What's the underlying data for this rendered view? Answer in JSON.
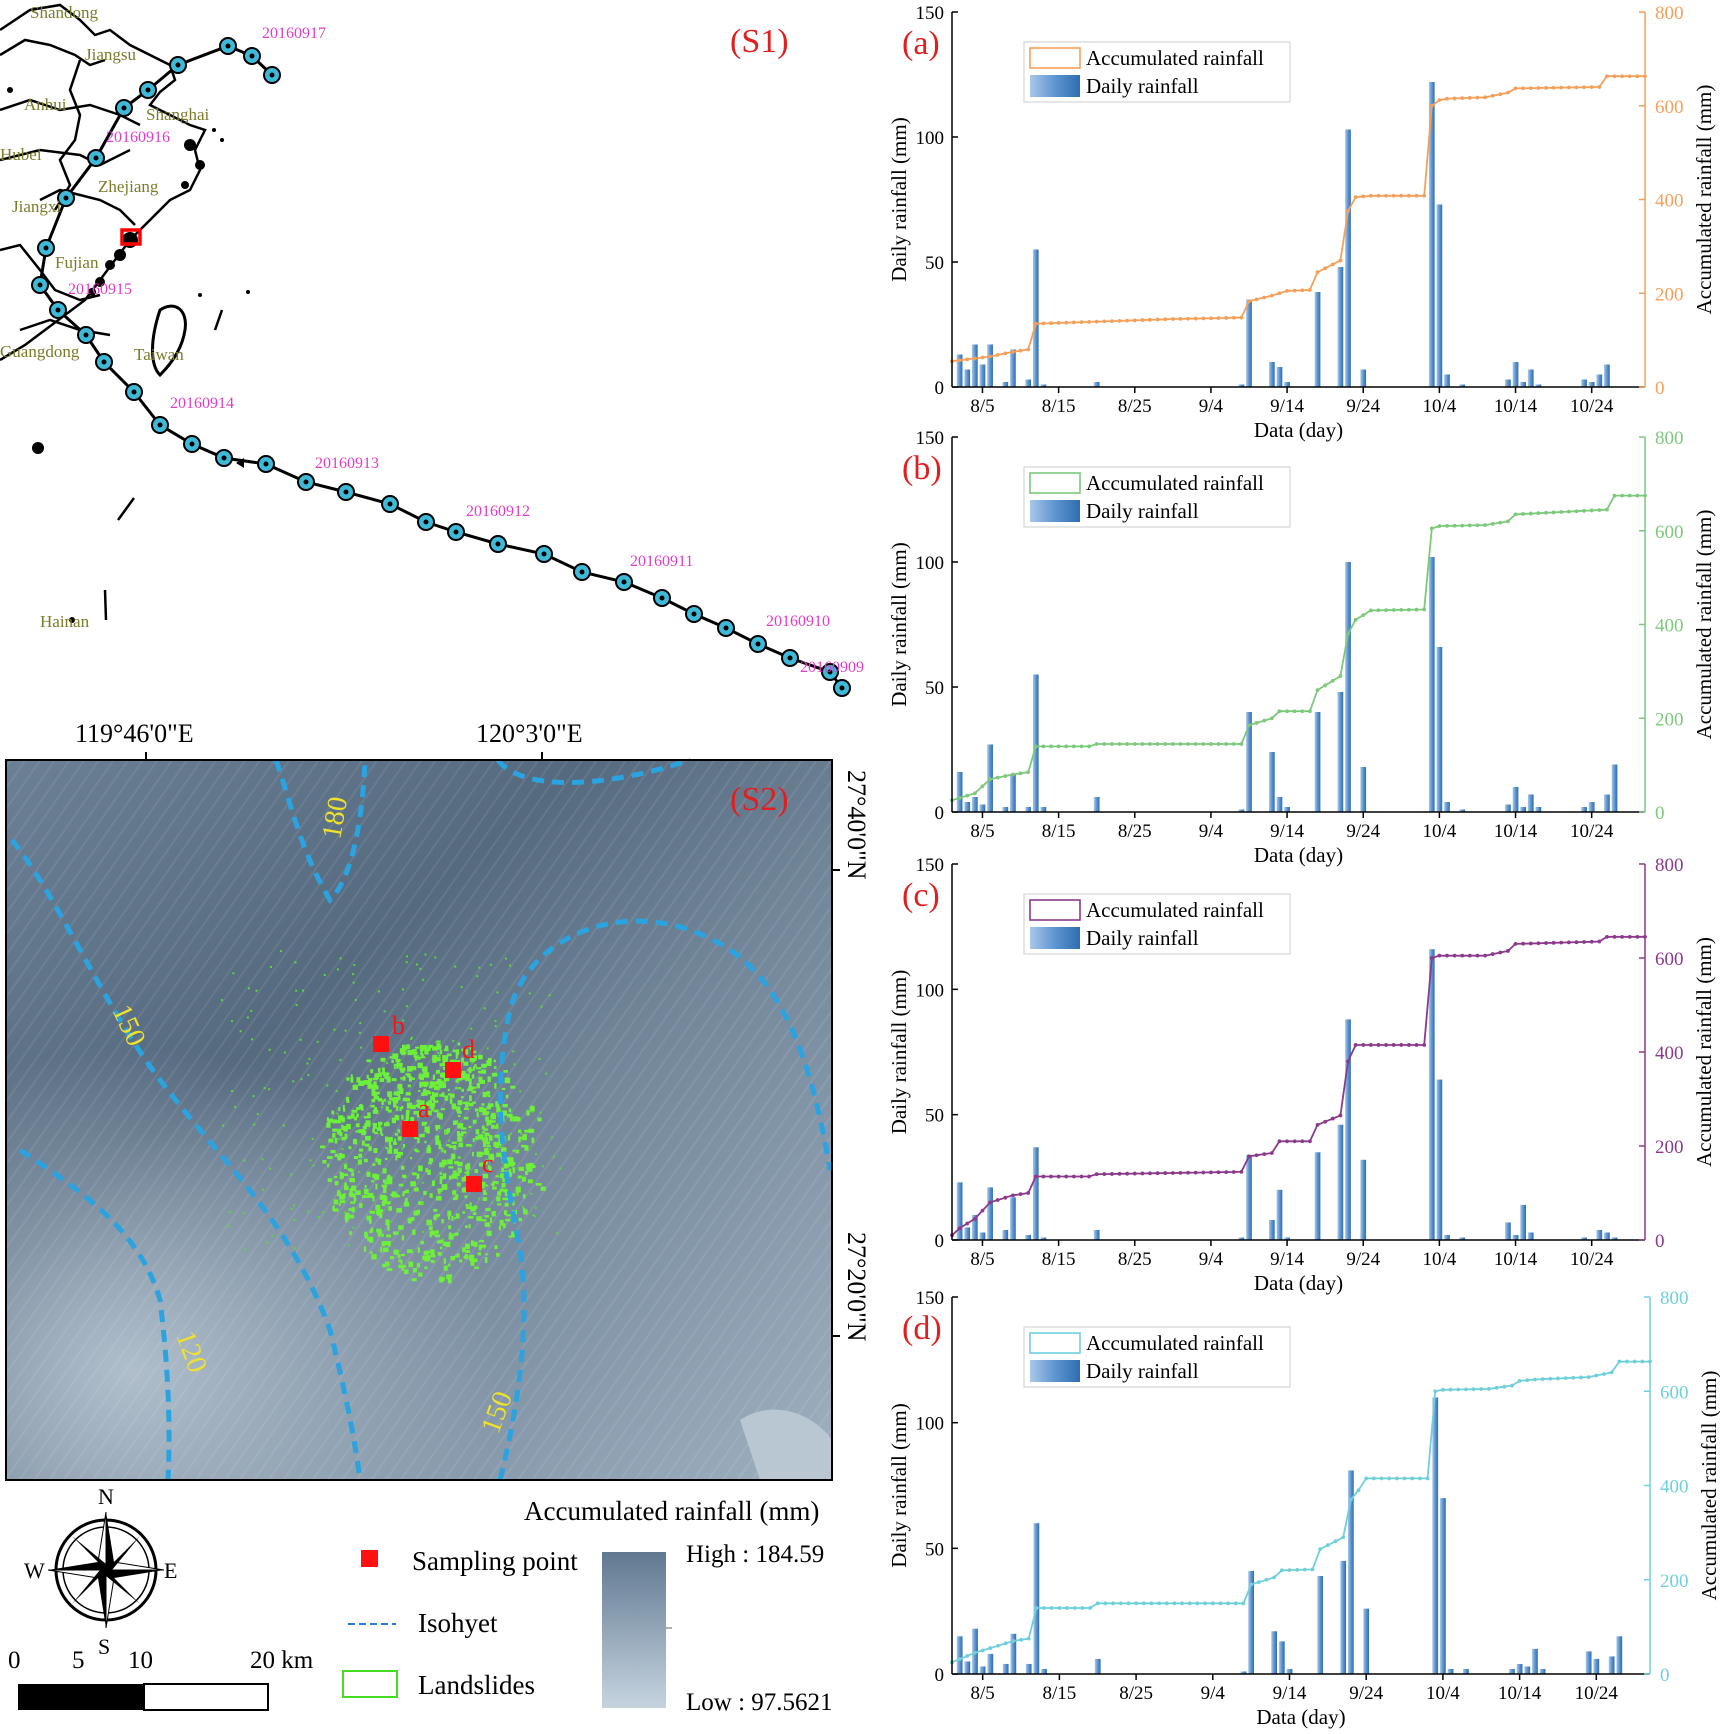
{
  "map_top": {
    "panel_label": "(S1)",
    "provinces": [
      "Shandong",
      "Jiangsu",
      "Anhui",
      "Shanghai",
      "Hubei",
      "Zhejiang",
      "Jiangxi",
      "Fujian",
      "Guangdong",
      "Taiwan",
      "Hainan"
    ],
    "track_dates": [
      "20160917",
      "20160916",
      "20160915",
      "20160914",
      "20160913",
      "20160912",
      "20160911",
      "20160910",
      "20160909"
    ]
  },
  "map_bottom": {
    "panel_label": "(S2)",
    "lon_labels": [
      "119°46'0\"E",
      "120°3'0\"E"
    ],
    "lat_labels": [
      "27°40'0\"N",
      "27°20'0\"N"
    ],
    "isohyet_labels": [
      "180",
      "150",
      "150",
      "120"
    ],
    "points": [
      "a",
      "b",
      "c",
      "d"
    ]
  },
  "legend": {
    "compass": [
      "N",
      "E",
      "S",
      "W"
    ],
    "scale": [
      "0",
      "5",
      "10",
      "20 km"
    ],
    "rain_title": "Accumulated rainfall (mm)",
    "sampling": "Sampling point",
    "isohyet": "Isohyet",
    "landslides": "Landslides",
    "high": "High : 184.59",
    "low": "Low : 97.5621"
  },
  "chart_common": {
    "xlabel": "Data (day)",
    "ylabel_left": "Daily rainfall (mm)",
    "ylabel_right": "Accumulated rainfall (mm)",
    "legend_line": "Accumulated rainfall",
    "legend_bar": "Daily rainfall",
    "x_ticks": [
      "8/5",
      "8/15",
      "8/25",
      "9/4",
      "9/14",
      "9/24",
      "10/4",
      "10/14",
      "10/24"
    ],
    "x_tick_days": [
      4,
      14,
      24,
      34,
      44,
      54,
      64,
      74,
      84
    ],
    "y_left_ticks": [
      "0",
      "50",
      "100",
      "150"
    ],
    "y_right_ticks": [
      "0",
      "200",
      "400",
      "600",
      "800"
    ]
  },
  "chart_data": [
    {
      "panel": "(a)",
      "type": "bar",
      "color": "#f5a05a",
      "x_range_days": [
        0,
        91
      ],
      "ylim_left": [
        0,
        150
      ],
      "ylim_right": [
        0,
        800
      ],
      "bars": [
        [
          1,
          13
        ],
        [
          2,
          7
        ],
        [
          3,
          17
        ],
        [
          4,
          9
        ],
        [
          5,
          17
        ],
        [
          7,
          2
        ],
        [
          8,
          15
        ],
        [
          10,
          3
        ],
        [
          11,
          55
        ],
        [
          12,
          1
        ],
        [
          19,
          2
        ],
        [
          38,
          1
        ],
        [
          39,
          35
        ],
        [
          42,
          10
        ],
        [
          43,
          8
        ],
        [
          44,
          2
        ],
        [
          48,
          38
        ],
        [
          51,
          48
        ],
        [
          52,
          103
        ],
        [
          54,
          7
        ],
        [
          63,
          122
        ],
        [
          64,
          73
        ],
        [
          65,
          5
        ],
        [
          67,
          1
        ],
        [
          73,
          3
        ],
        [
          74,
          10
        ],
        [
          75,
          2
        ],
        [
          76,
          7
        ],
        [
          77,
          1
        ],
        [
          83,
          3
        ],
        [
          84,
          2
        ],
        [
          85,
          5
        ],
        [
          86,
          9
        ]
      ],
      "accumulated": [
        [
          0,
          55
        ],
        [
          5,
          65
        ],
        [
          8,
          75
        ],
        [
          10,
          80
        ],
        [
          11,
          135
        ],
        [
          20,
          140
        ],
        [
          29,
          145
        ],
        [
          38,
          148
        ],
        [
          39,
          183
        ],
        [
          42,
          195
        ],
        [
          44,
          205
        ],
        [
          47,
          207
        ],
        [
          48,
          245
        ],
        [
          51,
          270
        ],
        [
          52,
          375
        ],
        [
          53,
          405
        ],
        [
          55,
          408
        ],
        [
          62,
          408
        ],
        [
          63,
          600
        ],
        [
          64,
          612
        ],
        [
          65,
          615
        ],
        [
          70,
          618
        ],
        [
          73,
          628
        ],
        [
          74,
          637
        ],
        [
          85,
          640
        ],
        [
          86,
          663
        ],
        [
          91,
          663
        ]
      ]
    },
    {
      "panel": "(b)",
      "type": "bar",
      "color": "#7cc97c",
      "x_range_days": [
        0,
        91
      ],
      "ylim_left": [
        0,
        150
      ],
      "ylim_right": [
        0,
        800
      ],
      "bars": [
        [
          1,
          16
        ],
        [
          2,
          4
        ],
        [
          3,
          6
        ],
        [
          4,
          3
        ],
        [
          5,
          27
        ],
        [
          7,
          2
        ],
        [
          8,
          15
        ],
        [
          10,
          2
        ],
        [
          11,
          55
        ],
        [
          12,
          2
        ],
        [
          19,
          6
        ],
        [
          38,
          1
        ],
        [
          39,
          40
        ],
        [
          42,
          24
        ],
        [
          43,
          6
        ],
        [
          44,
          2
        ],
        [
          48,
          40
        ],
        [
          51,
          48
        ],
        [
          52,
          100
        ],
        [
          54,
          18
        ],
        [
          63,
          102
        ],
        [
          64,
          66
        ],
        [
          65,
          4
        ],
        [
          67,
          1
        ],
        [
          73,
          3
        ],
        [
          74,
          10
        ],
        [
          75,
          2
        ],
        [
          76,
          7
        ],
        [
          77,
          2
        ],
        [
          83,
          2
        ],
        [
          84,
          4
        ],
        [
          86,
          7
        ],
        [
          87,
          19
        ]
      ],
      "accumulated": [
        [
          0,
          25
        ],
        [
          3,
          40
        ],
        [
          5,
          70
        ],
        [
          8,
          80
        ],
        [
          10,
          85
        ],
        [
          11,
          140
        ],
        [
          18,
          140
        ],
        [
          19,
          145
        ],
        [
          38,
          145
        ],
        [
          39,
          185
        ],
        [
          42,
          200
        ],
        [
          43,
          215
        ],
        [
          47,
          215
        ],
        [
          48,
          260
        ],
        [
          51,
          290
        ],
        [
          52,
          380
        ],
        [
          53,
          410
        ],
        [
          55,
          430
        ],
        [
          62,
          432
        ],
        [
          63,
          605
        ],
        [
          64,
          610
        ],
        [
          70,
          612
        ],
        [
          73,
          620
        ],
        [
          74,
          635
        ],
        [
          86,
          645
        ],
        [
          87,
          675
        ],
        [
          91,
          675
        ]
      ]
    },
    {
      "panel": "(c)",
      "type": "bar",
      "color": "#8b3a8b",
      "x_range_days": [
        0,
        91
      ],
      "ylim_left": [
        0,
        150
      ],
      "ylim_right": [
        0,
        800
      ],
      "bars": [
        [
          1,
          23
        ],
        [
          2,
          5
        ],
        [
          3,
          10
        ],
        [
          4,
          3
        ],
        [
          5,
          21
        ],
        [
          7,
          4
        ],
        [
          8,
          17
        ],
        [
          10,
          2
        ],
        [
          11,
          37
        ],
        [
          12,
          1
        ],
        [
          19,
          4
        ],
        [
          38,
          1
        ],
        [
          39,
          34
        ],
        [
          42,
          8
        ],
        [
          43,
          20
        ],
        [
          44,
          1
        ],
        [
          48,
          35
        ],
        [
          51,
          46
        ],
        [
          52,
          88
        ],
        [
          54,
          32
        ],
        [
          63,
          116
        ],
        [
          64,
          64
        ],
        [
          65,
          2
        ],
        [
          67,
          1
        ],
        [
          73,
          7
        ],
        [
          74,
          2
        ],
        [
          75,
          14
        ],
        [
          76,
          3
        ],
        [
          83,
          1
        ],
        [
          85,
          4
        ],
        [
          86,
          3
        ],
        [
          87,
          1
        ]
      ],
      "accumulated": [
        [
          0,
          10
        ],
        [
          1,
          25
        ],
        [
          3,
          45
        ],
        [
          5,
          80
        ],
        [
          8,
          95
        ],
        [
          10,
          100
        ],
        [
          11,
          135
        ],
        [
          18,
          135
        ],
        [
          19,
          140
        ],
        [
          38,
          145
        ],
        [
          39,
          178
        ],
        [
          42,
          185
        ],
        [
          43,
          210
        ],
        [
          47,
          210
        ],
        [
          48,
          245
        ],
        [
          51,
          265
        ],
        [
          52,
          380
        ],
        [
          53,
          415
        ],
        [
          62,
          415
        ],
        [
          63,
          600
        ],
        [
          64,
          605
        ],
        [
          70,
          605
        ],
        [
          73,
          615
        ],
        [
          74,
          630
        ],
        [
          85,
          635
        ],
        [
          86,
          645
        ],
        [
          91,
          645
        ]
      ]
    },
    {
      "panel": "(d)",
      "type": "bar",
      "color": "#6fd0dc",
      "x_range_days": [
        0,
        91
      ],
      "ylim_left": [
        0,
        150
      ],
      "ylim_right": [
        0,
        800
      ],
      "bars": [
        [
          1,
          15
        ],
        [
          2,
          5
        ],
        [
          3,
          18
        ],
        [
          4,
          3
        ],
        [
          5,
          8
        ],
        [
          7,
          4
        ],
        [
          8,
          16
        ],
        [
          10,
          4
        ],
        [
          11,
          60
        ],
        [
          12,
          2
        ],
        [
          19,
          6
        ],
        [
          38,
          1
        ],
        [
          39,
          41
        ],
        [
          42,
          17
        ],
        [
          43,
          13
        ],
        [
          44,
          2
        ],
        [
          48,
          39
        ],
        [
          51,
          45
        ],
        [
          52,
          81
        ],
        [
          54,
          26
        ],
        [
          63,
          110
        ],
        [
          64,
          70
        ],
        [
          65,
          2
        ],
        [
          67,
          2
        ],
        [
          73,
          2
        ],
        [
          74,
          4
        ],
        [
          75,
          3
        ],
        [
          76,
          10
        ],
        [
          77,
          2
        ],
        [
          83,
          9
        ],
        [
          84,
          6
        ],
        [
          86,
          7
        ],
        [
          87,
          15
        ]
      ],
      "accumulated": [
        [
          0,
          25
        ],
        [
          3,
          45
        ],
        [
          5,
          55
        ],
        [
          8,
          70
        ],
        [
          10,
          75
        ],
        [
          11,
          140
        ],
        [
          18,
          140
        ],
        [
          19,
          150
        ],
        [
          38,
          150
        ],
        [
          39,
          190
        ],
        [
          42,
          205
        ],
        [
          43,
          220
        ],
        [
          47,
          222
        ],
        [
          48,
          265
        ],
        [
          51,
          290
        ],
        [
          52,
          370
        ],
        [
          53,
          390
        ],
        [
          54,
          415
        ],
        [
          62,
          415
        ],
        [
          63,
          600
        ],
        [
          64,
          603
        ],
        [
          70,
          605
        ],
        [
          73,
          612
        ],
        [
          74,
          622
        ],
        [
          76,
          625
        ],
        [
          83,
          630
        ],
        [
          86,
          640
        ],
        [
          87,
          663
        ],
        [
          91,
          663
        ]
      ]
    }
  ]
}
